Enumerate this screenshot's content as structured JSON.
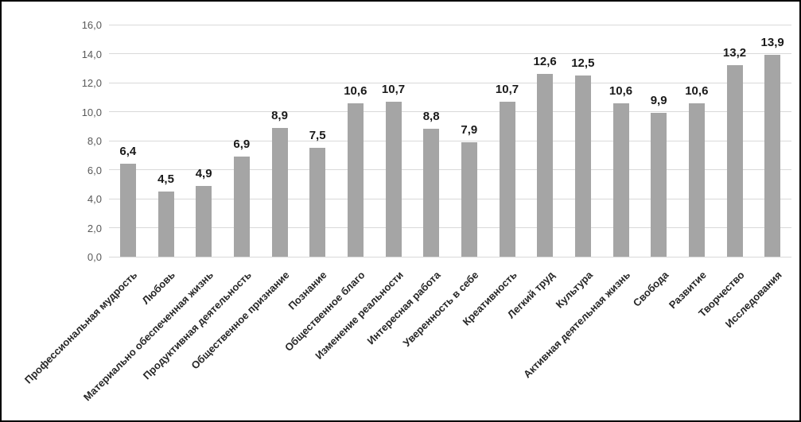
{
  "chart_data": {
    "type": "bar",
    "title": "",
    "categories": [
      "Профессиональная мудрость",
      "Любовь",
      "Материально обеспеченная жизнь",
      "Продуктивная деятельность",
      "Общественное признание",
      "Познание",
      "Общественное благо",
      "Изменение реальности",
      "Интересная работа",
      "Уверенность в себе",
      "Креативность",
      "Легкий труд",
      "Культура",
      "Активная деятельная жизнь",
      "Свобода",
      "Развитие",
      "Творчество",
      "Исследования"
    ],
    "values": [
      6.4,
      4.5,
      4.9,
      6.9,
      8.9,
      7.5,
      10.6,
      10.7,
      8.8,
      7.9,
      10.7,
      12.6,
      12.5,
      10.6,
      9.9,
      10.6,
      13.2,
      13.9
    ],
    "value_labels": [
      "6,4",
      "4,5",
      "4,9",
      "6,9",
      "8,9",
      "7,5",
      "10,6",
      "10,7",
      "8,8",
      "7,9",
      "10,7",
      "12,6",
      "12,5",
      "10,6",
      "9,9",
      "10,6",
      "13,2",
      "13,9"
    ],
    "y_tick_labels": [
      "0,0",
      "2,0",
      "4,0",
      "6,0",
      "8,0",
      "10,0",
      "12,0",
      "14,0",
      "16,0"
    ],
    "ylim": [
      0,
      16
    ],
    "y_tick_step": 2,
    "xlabel": "",
    "ylabel": "",
    "grid": true,
    "legend_position": "none",
    "x_label_rotation_deg": 45,
    "colors": {
      "bar_fill": "#a5a5a5",
      "gridline": "#d9d9d9",
      "y_axis_text": "#595959",
      "value_label_text": "#1a1a1a",
      "category_text": "#262626",
      "frame_border": "#000000",
      "background": "#ffffff"
    }
  }
}
